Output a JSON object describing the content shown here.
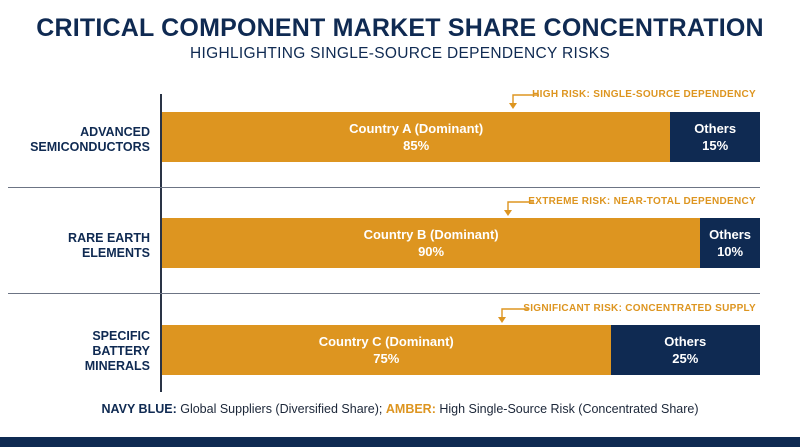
{
  "chart_data": {
    "type": "bar",
    "orientation": "horizontal",
    "stacked": true,
    "title": "CRITICAL COMPONENT MARKET SHARE CONCENTRATION",
    "subtitle": "HIGHLIGHTING SINGLE-SOURCE DEPENDENCY RISKS",
    "unit": "%",
    "xlim": [
      0,
      100
    ],
    "categories": [
      {
        "line1": "ADVANCED",
        "line2": "SEMICONDUCTORS",
        "line3": ""
      },
      {
        "line1": "RARE EARTH",
        "line2": "ELEMENTS",
        "line3": ""
      },
      {
        "line1": "SPECIFIC",
        "line2": "BATTERY",
        "line3": "MINERALS"
      }
    ],
    "bars": [
      {
        "dominant_label": "Country A (Dominant)",
        "dominant_value": 85,
        "dominant_text": "85%",
        "others_label": "Others",
        "others_value": 15,
        "others_text": "15%",
        "risk_annotation": "HIGH RISK: SINGLE-SOURCE DEPENDENCY"
      },
      {
        "dominant_label": "Country B (Dominant)",
        "dominant_value": 90,
        "dominant_text": "90%",
        "others_label": "Others",
        "others_value": 10,
        "others_text": "10%",
        "risk_annotation": "EXTREME RISK: NEAR-TOTAL DEPENDENCY"
      },
      {
        "dominant_label": "Country C (Dominant)",
        "dominant_value": 75,
        "dominant_text": "75%",
        "others_label": "Others",
        "others_value": 25,
        "others_text": "25%",
        "risk_annotation": "SIGNIFICANT RISK: CONCENTRATED SUPPLY"
      }
    ],
    "colors": {
      "dominant": "#dd9520",
      "others": "#0f2a52"
    }
  },
  "legend": {
    "navy_key": "NAVY BLUE:",
    "navy_text": " Global Suppliers (Diversified Share); ",
    "amber_key": "AMBER:",
    "amber_text": " High Single-Source Risk (Concentrated Share)"
  }
}
